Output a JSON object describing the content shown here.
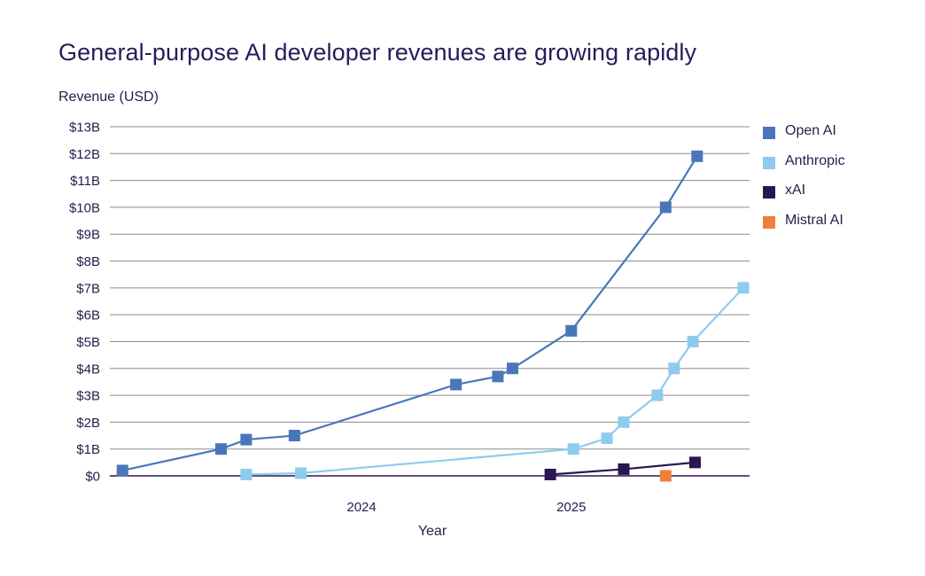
{
  "chart_data": {
    "type": "line",
    "title": "General-purpose AI developer revenues are growing rapidly",
    "ylabel": "Revenue (USD)",
    "xlabel": "Year",
    "ylim": [
      0,
      13
    ],
    "yticks": [
      "$0",
      "$1B",
      "$2B",
      "$3B",
      "$4B",
      "$5B",
      "$6B",
      "$7B",
      "$8B",
      "$9B",
      "$10B",
      "$11B",
      "$12B",
      "$13B"
    ],
    "xticks": [
      {
        "label": "2024",
        "x": 2024.0
      },
      {
        "label": "2025",
        "x": 2025.0
      }
    ],
    "xlim": [
      2022.8,
      2025.85
    ],
    "grid": true,
    "legend_position": "right",
    "series": [
      {
        "name": "Open AI",
        "color": "#4a76b9",
        "connected": true,
        "points": [
          [
            2022.86,
            0.2
          ],
          [
            2023.33,
            1.0
          ],
          [
            2023.45,
            1.35
          ],
          [
            2023.68,
            1.5
          ],
          [
            2024.45,
            3.4
          ],
          [
            2024.65,
            3.7
          ],
          [
            2024.72,
            4.0
          ],
          [
            2025.0,
            5.4
          ],
          [
            2025.45,
            10.0
          ],
          [
            2025.6,
            11.9
          ]
        ]
      },
      {
        "name": "Anthropic",
        "color": "#8ecbee",
        "connected": true,
        "points": [
          [
            2023.45,
            0.05
          ],
          [
            2023.71,
            0.1
          ],
          [
            2025.01,
            1.0
          ],
          [
            2025.17,
            1.4
          ],
          [
            2025.25,
            2.0
          ],
          [
            2025.41,
            3.0
          ],
          [
            2025.49,
            4.0
          ],
          [
            2025.58,
            5.0
          ],
          [
            2025.82,
            7.0
          ]
        ]
      },
      {
        "name": "xAI",
        "color": "#2a1650",
        "connected": true,
        "points": [
          [
            2024.9,
            0.05
          ],
          [
            2025.25,
            0.25
          ],
          [
            2025.59,
            0.5
          ]
        ]
      },
      {
        "name": "Mistral AI",
        "color": "#f07f3c",
        "connected": false,
        "points": [
          [
            2025.45,
            0.0
          ]
        ]
      }
    ]
  }
}
